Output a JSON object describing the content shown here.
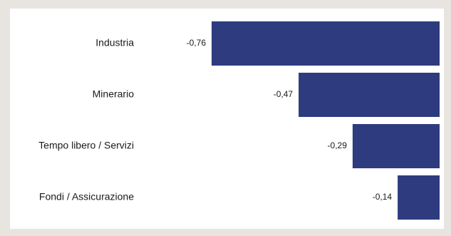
{
  "chart_data": {
    "type": "bar",
    "orientation": "horizontal",
    "categories": [
      "Industria",
      "Minerario",
      "Tempo libero / Servizi",
      "Fondi / Assicurazione"
    ],
    "values": [
      -0.76,
      -0.47,
      -0.29,
      -0.14
    ],
    "value_labels": [
      "-0,76",
      "-0,47",
      "-0,29",
      "-0,14"
    ],
    "title": "",
    "xlabel": "",
    "ylabel": "",
    "xlim": [
      -0.76,
      0
    ],
    "grid": false,
    "legend": "none",
    "bar_color": "#2e3b7e",
    "background_color": "#e8e4df"
  }
}
